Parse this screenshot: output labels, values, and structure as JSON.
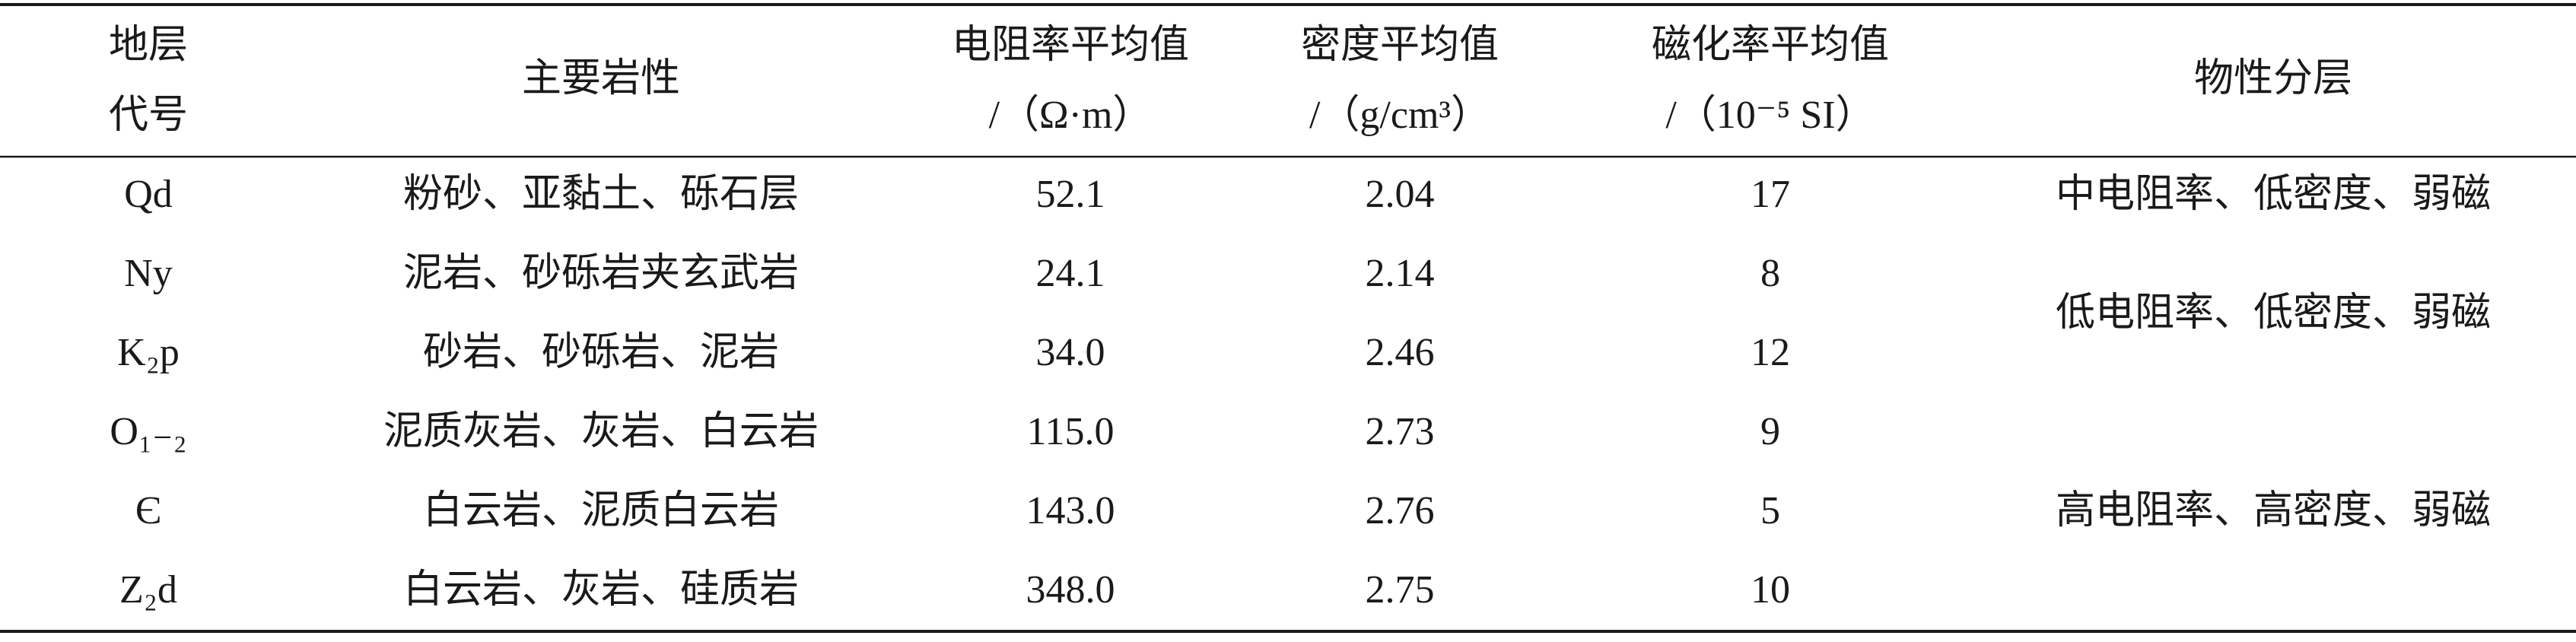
{
  "table": {
    "header": [
      [
        "地层",
        "代号"
      ],
      [
        "主要岩性"
      ],
      [
        "电阻率平均值",
        "/（Ω·m）"
      ],
      [
        "密度平均值",
        "/（g/cm³）"
      ],
      [
        "磁化率平均值",
        "/（10⁻⁵ SI）"
      ],
      [
        "物性分层"
      ]
    ],
    "rows": [
      [
        "Qd",
        "粉砂、亚黏土、砾石层",
        "52.1",
        "2.04",
        "17"
      ],
      [
        "Ny",
        "泥岩、砂砾岩夹玄武岩",
        "24.1",
        "2.14",
        "8"
      ],
      [
        "K₂p",
        "砂岩、砂砾岩、泥岩",
        "34.0",
        "2.46",
        "12"
      ],
      [
        "O₁₋₂",
        "泥质灰岩、灰岩、白云岩",
        "115.0",
        "2.73",
        "9"
      ],
      [
        "Є",
        "白云岩、泥质白云岩",
        "143.0",
        "2.76",
        "5"
      ],
      [
        "Z₂d",
        "白云岩、灰岩、硅质岩",
        "348.0",
        "2.75",
        "10"
      ]
    ],
    "classes": [
      "中电阻率、低密度、弱磁",
      "低电阻率、低密度、弱磁",
      "高电阻率、高密度、弱磁"
    ]
  }
}
